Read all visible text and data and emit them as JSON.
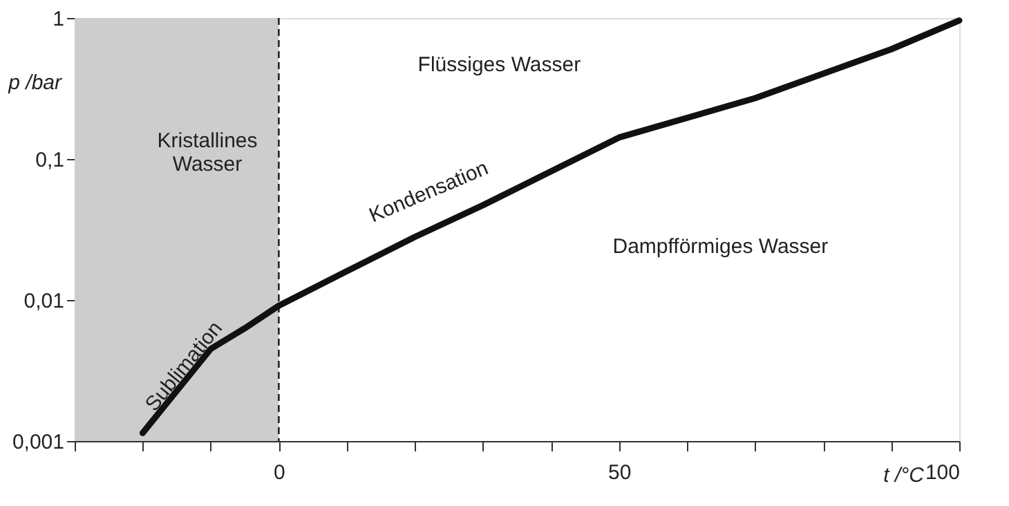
{
  "chart_data": {
    "type": "line",
    "xlabel": "t /°C",
    "ylabel": "p /bar",
    "log": "y",
    "grid": false,
    "xlim": [
      -30,
      100
    ],
    "xticks": [
      {
        "value": -30,
        "label": null
      },
      {
        "value": -20,
        "label": null
      },
      {
        "value": -10,
        "label": null
      },
      0,
      {
        "value": 10,
        "label": null
      },
      {
        "value": 20,
        "label": null
      },
      {
        "value": 30,
        "label": null
      },
      {
        "value": 40,
        "label": null
      },
      50,
      {
        "value": 60,
        "label": null
      },
      {
        "value": 70,
        "label": null
      },
      {
        "value": 80,
        "label": null
      },
      {
        "value": 90,
        "label": null
      },
      100
    ],
    "ylim": [
      0.001,
      1
    ],
    "yticks": [
      {
        "value": 0.001,
        "label": "0,001"
      },
      {
        "value": 0.01,
        "label": "0,01"
      },
      {
        "value": 0.1,
        "label": "0,1"
      },
      1
    ],
    "x": [
      -20,
      -10,
      -5,
      0,
      10,
      20,
      30,
      50,
      70,
      90,
      100
    ],
    "series": [
      {
        "color": "#111111",
        "values": [
          0.00114,
          0.0045,
          0.0063,
          0.0091,
          0.016,
          0.028,
          0.047,
          0.142,
          0.27,
          0.6,
          0.96
        ]
      }
    ],
    "bands": [
      {
        "axis": "x",
        "from": -30,
        "to": 0,
        "color": "#cdcdcd"
      }
    ],
    "ref_lines": [
      {
        "axis": "x",
        "value": 0,
        "line_style": "dashed",
        "color": "#222222"
      }
    ],
    "annotations": [
      "Kristallines\nWasser",
      "Flüssiges Wasser",
      "Dampfförmiges Wasser",
      {
        "text": "Sublimation",
        "x": -14,
        "y": 0.0034
      },
      "Kondensation"
    ]
  }
}
